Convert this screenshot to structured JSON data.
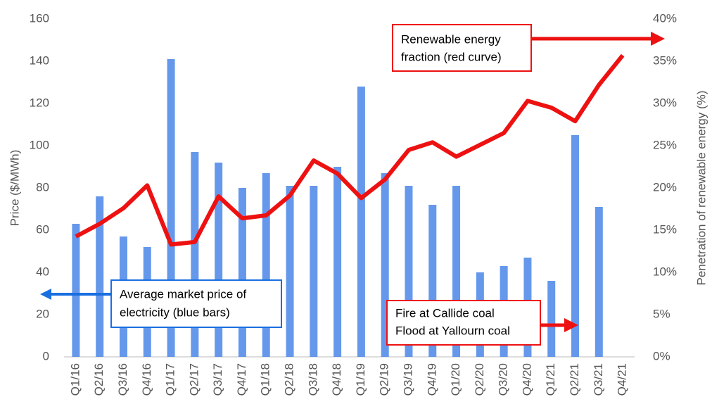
{
  "chart_data": {
    "type": "bar",
    "y_label": "Price ($/MWh)",
    "y2_label": "Penetration of renewable energy (%)",
    "categories": [
      "Q1/16",
      "Q2/16",
      "Q3/16",
      "Q4/16",
      "Q1/17",
      "Q2/17",
      "Q3/17",
      "Q4/17",
      "Q1/18",
      "Q2/18",
      "Q3/18",
      "Q4/18",
      "Q1/19",
      "Q2/19",
      "Q3/19",
      "Q4/19",
      "Q1/20",
      "Q2/20",
      "Q3/20",
      "Q4/20",
      "Q1/21",
      "Q2/21",
      "Q3/21",
      "Q4/21"
    ],
    "series": [
      {
        "type": "bar",
        "color": "#4a86e8",
        "axis": "y",
        "values": [
          63,
          76,
          57,
          52,
          141,
          97,
          92,
          80,
          87,
          81,
          81,
          90,
          128,
          87,
          81,
          72,
          81,
          40,
          43,
          47,
          36,
          105,
          71,
          null
        ]
      },
      {
        "type": "line",
        "color": "#ee1111",
        "axis": "y2",
        "values": [
          14.25,
          15.75,
          17.6,
          20.3,
          13.3,
          13.6,
          19,
          16.4,
          16.75,
          19.1,
          23.25,
          21.7,
          18.8,
          21,
          24.5,
          25.4,
          23.7,
          25.1,
          26.5,
          30.3,
          29.5,
          27.9,
          32.2,
          35.7
        ]
      }
    ],
    "ylim": [
      0,
      160
    ],
    "yticks": [
      0,
      20,
      40,
      60,
      80,
      100,
      120,
      140,
      160
    ],
    "y2lim": [
      0,
      40
    ],
    "y2ticks": [
      {
        "value": 0,
        "label": "0%"
      },
      {
        "value": 5,
        "label": "5%"
      },
      {
        "value": 10,
        "label": "10%"
      },
      {
        "value": 15,
        "label": "15%"
      },
      {
        "value": 20,
        "label": "20%"
      },
      {
        "value": 25,
        "label": "25%"
      },
      {
        "value": 30,
        "label": "30%"
      },
      {
        "value": 35,
        "label": "35%"
      },
      {
        "value": 40,
        "label": "40%"
      }
    ],
    "grid": false,
    "annotations": [
      {
        "lines": [
          "Renewable energy",
          "fraction (red curve)"
        ]
      },
      {
        "lines": [
          "Average market price of",
          "electricity (blue bars)"
        ]
      },
      {
        "lines": [
          "Fire at Callide coal",
          "Flood at Yallourn coal"
        ]
      }
    ]
  }
}
